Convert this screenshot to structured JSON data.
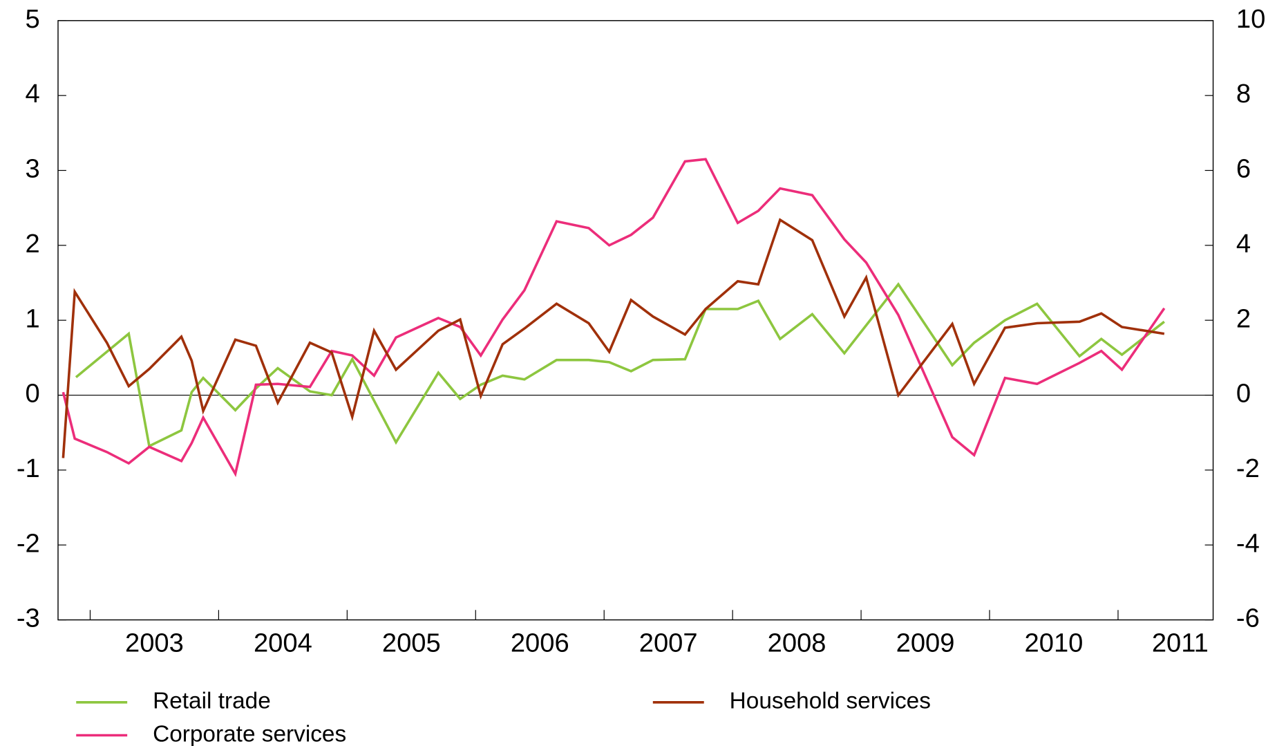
{
  "chart_data": {
    "type": "line",
    "xlim": [
      2002.75,
      2011.74
    ],
    "xticks": [
      {
        "value": 2003,
        "label": "2003"
      },
      {
        "value": 2004,
        "label": "2004"
      },
      {
        "value": 2005,
        "label": "2005"
      },
      {
        "value": 2006,
        "label": "2006"
      },
      {
        "value": 2007,
        "label": "2007"
      },
      {
        "value": 2008,
        "label": "2008"
      },
      {
        "value": 2009,
        "label": "2009"
      },
      {
        "value": 2010,
        "label": "2010"
      },
      {
        "value": 2011,
        "label": "2011"
      }
    ],
    "ylim": [
      -3,
      5
    ],
    "yticks": [
      -3,
      -2,
      -1,
      0,
      1,
      2,
      3,
      4,
      5
    ],
    "y2lim": [
      -6,
      10
    ],
    "y2ticks": [
      -6,
      -4,
      -2,
      0,
      2,
      4,
      6,
      8,
      10
    ],
    "series": [
      {
        "name": "Retail trade",
        "color": "#8dc63f",
        "x": [
          2002.89,
          2003.3,
          2003.46,
          2003.71,
          2003.79,
          2003.88,
          2004.13,
          2004.29,
          2004.46,
          2004.71,
          2004.88,
          2005.04,
          2005.38,
          2005.71,
          2005.88,
          2006.04,
          2006.21,
          2006.38,
          2006.63,
          2006.88,
          2007.04,
          2007.21,
          2007.38,
          2007.63,
          2007.79,
          2008.04,
          2008.2,
          2008.37,
          2008.62,
          2008.87,
          2009.29,
          2009.71,
          2009.88,
          2010.12,
          2010.37,
          2010.7,
          2010.87,
          2011.03,
          2011.36
        ],
        "values": [
          0.24,
          0.82,
          -0.68,
          -0.47,
          0.04,
          0.23,
          -0.2,
          0.09,
          0.36,
          0.05,
          0.0,
          0.48,
          -0.63,
          0.3,
          -0.05,
          0.14,
          0.26,
          0.21,
          0.47,
          0.47,
          0.44,
          0.32,
          0.47,
          0.48,
          1.15,
          1.15,
          1.26,
          0.75,
          1.08,
          0.56,
          1.48,
          0.4,
          0.7,
          1.0,
          1.22,
          0.52,
          0.75,
          0.54,
          0.98
        ]
      },
      {
        "name": "Corporate services",
        "color": "#ec2d7a",
        "x": [
          2002.79,
          2002.88,
          2003.13,
          2003.3,
          2003.46,
          2003.71,
          2003.79,
          2003.88,
          2004.13,
          2004.29,
          2004.46,
          2004.71,
          2004.88,
          2005.04,
          2005.21,
          2005.38,
          2005.71,
          2005.88,
          2006.04,
          2006.21,
          2006.38,
          2006.63,
          2006.88,
          2007.04,
          2007.21,
          2007.38,
          2007.63,
          2007.79,
          2008.04,
          2008.2,
          2008.37,
          2008.62,
          2008.87,
          2009.04,
          2009.29,
          2009.71,
          2009.88,
          2010.12,
          2010.37,
          2010.7,
          2010.87,
          2011.03,
          2011.36
        ],
        "values": [
          0.04,
          -0.58,
          -0.76,
          -0.91,
          -0.69,
          -0.88,
          -0.64,
          -0.3,
          -1.05,
          0.14,
          0.15,
          0.11,
          0.59,
          0.53,
          0.26,
          0.77,
          1.03,
          0.91,
          0.53,
          1.01,
          1.4,
          2.32,
          2.23,
          2.0,
          2.14,
          2.37,
          3.12,
          3.15,
          2.3,
          2.46,
          2.76,
          2.67,
          2.08,
          1.77,
          1.07,
          -0.56,
          -0.8,
          0.23,
          0.15,
          0.43,
          0.59,
          0.34,
          1.16
        ]
      },
      {
        "name": "Household services",
        "color": "#a0300a",
        "x": [
          2002.79,
          2002.88,
          2003.13,
          2003.3,
          2003.46,
          2003.71,
          2003.79,
          2003.88,
          2004.13,
          2004.29,
          2004.46,
          2004.71,
          2004.88,
          2005.04,
          2005.21,
          2005.38,
          2005.71,
          2005.88,
          2006.04,
          2006.21,
          2006.38,
          2006.63,
          2006.88,
          2007.04,
          2007.21,
          2007.38,
          2007.63,
          2007.79,
          2008.04,
          2008.2,
          2008.37,
          2008.62,
          2008.87,
          2009.04,
          2009.29,
          2009.71,
          2009.88,
          2010.12,
          2010.37,
          2010.7,
          2010.87,
          2011.03,
          2011.36
        ],
        "values": [
          -0.84,
          1.38,
          0.7,
          0.12,
          0.35,
          0.78,
          0.46,
          -0.21,
          0.74,
          0.66,
          -0.1,
          0.7,
          0.57,
          -0.29,
          0.86,
          0.34,
          0.86,
          1.01,
          -0.01,
          0.68,
          0.89,
          1.22,
          0.96,
          0.58,
          1.27,
          1.05,
          0.81,
          1.15,
          1.52,
          1.48,
          2.34,
          2.07,
          1.05,
          1.57,
          0.0,
          0.95,
          0.15,
          0.9,
          0.96,
          0.98,
          1.09,
          0.91,
          0.82
        ]
      }
    ]
  }
}
